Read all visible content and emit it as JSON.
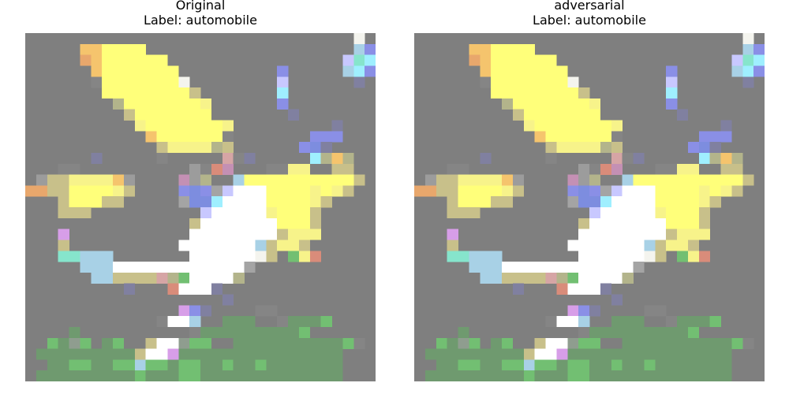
{
  "panels": [
    {
      "title": "Original",
      "label": "Label: automobile"
    },
    {
      "title": "adversarial",
      "label": "Label: automobile"
    }
  ],
  "image": {
    "description_rows": 32,
    "background": "#7f7f7f",
    "palette": {
      ".": "#7f7f7f",
      "g": "#858585",
      "W": "#ffffff",
      "w": "#f4f4ee",
      "Y": "#ffff7a",
      "y": "#f7f38a",
      "o": "#f5c46d",
      "O": "#e8a76c",
      "k": "#c8c08a",
      "e": "#b3b48b",
      "r": "#d98c7a",
      "p": "#c490b4",
      "b": "#8a8fe6",
      "B": "#7d8ddf",
      "c": "#9fefff",
      "t": "#86e5cc",
      "v": "#c8c8ff",
      "l": "#a8d1e6",
      "m": "#d79ee8",
      "n": "#d6a5a5",
      "G": "#72bf72",
      "h": "#6f9a6f",
      "s": "#8f9d8f",
      "x": "#8080a0",
      "q": "#a4a4a4",
      "z": "#9c9c9c"
    },
    "pixels": [
      "..............................w.",
      ".....ooYYYY...................lbb",
      ".....OoYYYYYY................vtcb",
      "......oYYYYYYY.........b.....lcbb",
      "......gYYYYYYYw........v......x..",
      ".......YYYYYYYYk.......c.........",
      "........eYYYYYYYy......b.........",
      ".........kYYYYYYY.......x........",
      "..........yYYYYYYYy.........x....",
      "...........oYYYYYYg.......bbb....",
      "............kyyyyek......bBx.....",
      "......x.....g.....ngx.....ceoe...",
      "...gg..........zgrp...ggyy..kk...",
      "Zzkkyyyyoz....pze..lYYYYYYYYYYk..",
      "OOkkYYYYyk....bBbqvWWWYYYYyYyk...",
      "Z..kYYYkk.....qBBcWWWWYYYYyk.....",
      "...kkk..........vWWWWWyYYYk......",
      "...............kWWWWWWWYYYk......",
      "...m...........WWWWWWWWkyyy......",
      "...k..........WWWWWWWlkyyk.......",
      "...ttlll.......WWWWWWwk.Gyr......",
      ".....lllWWWWWWWWWWWWq............",
      "......llkkkkneGWWWWe.............",
      ".........x...rWWWx...............",
      "..................x..............",
      "..............mbx....gg..........",
      "............gWWl..hhh..ghhhG.....",
      "....h..........ghhhhhhhhhG.......",
      "..GhsG.hG..kWWsGG..hhhhhhhhhhGg..",
      ".hhhhhhhhhkWWmhhhhhhhhhhhhhhh....",
      "..hhGGhhGGlGGhGGhhGhhGhhhhhhh....",
      ".hhhhhhhhhGhhhGGhhhhhhhhhhhhh...."
    ]
  }
}
